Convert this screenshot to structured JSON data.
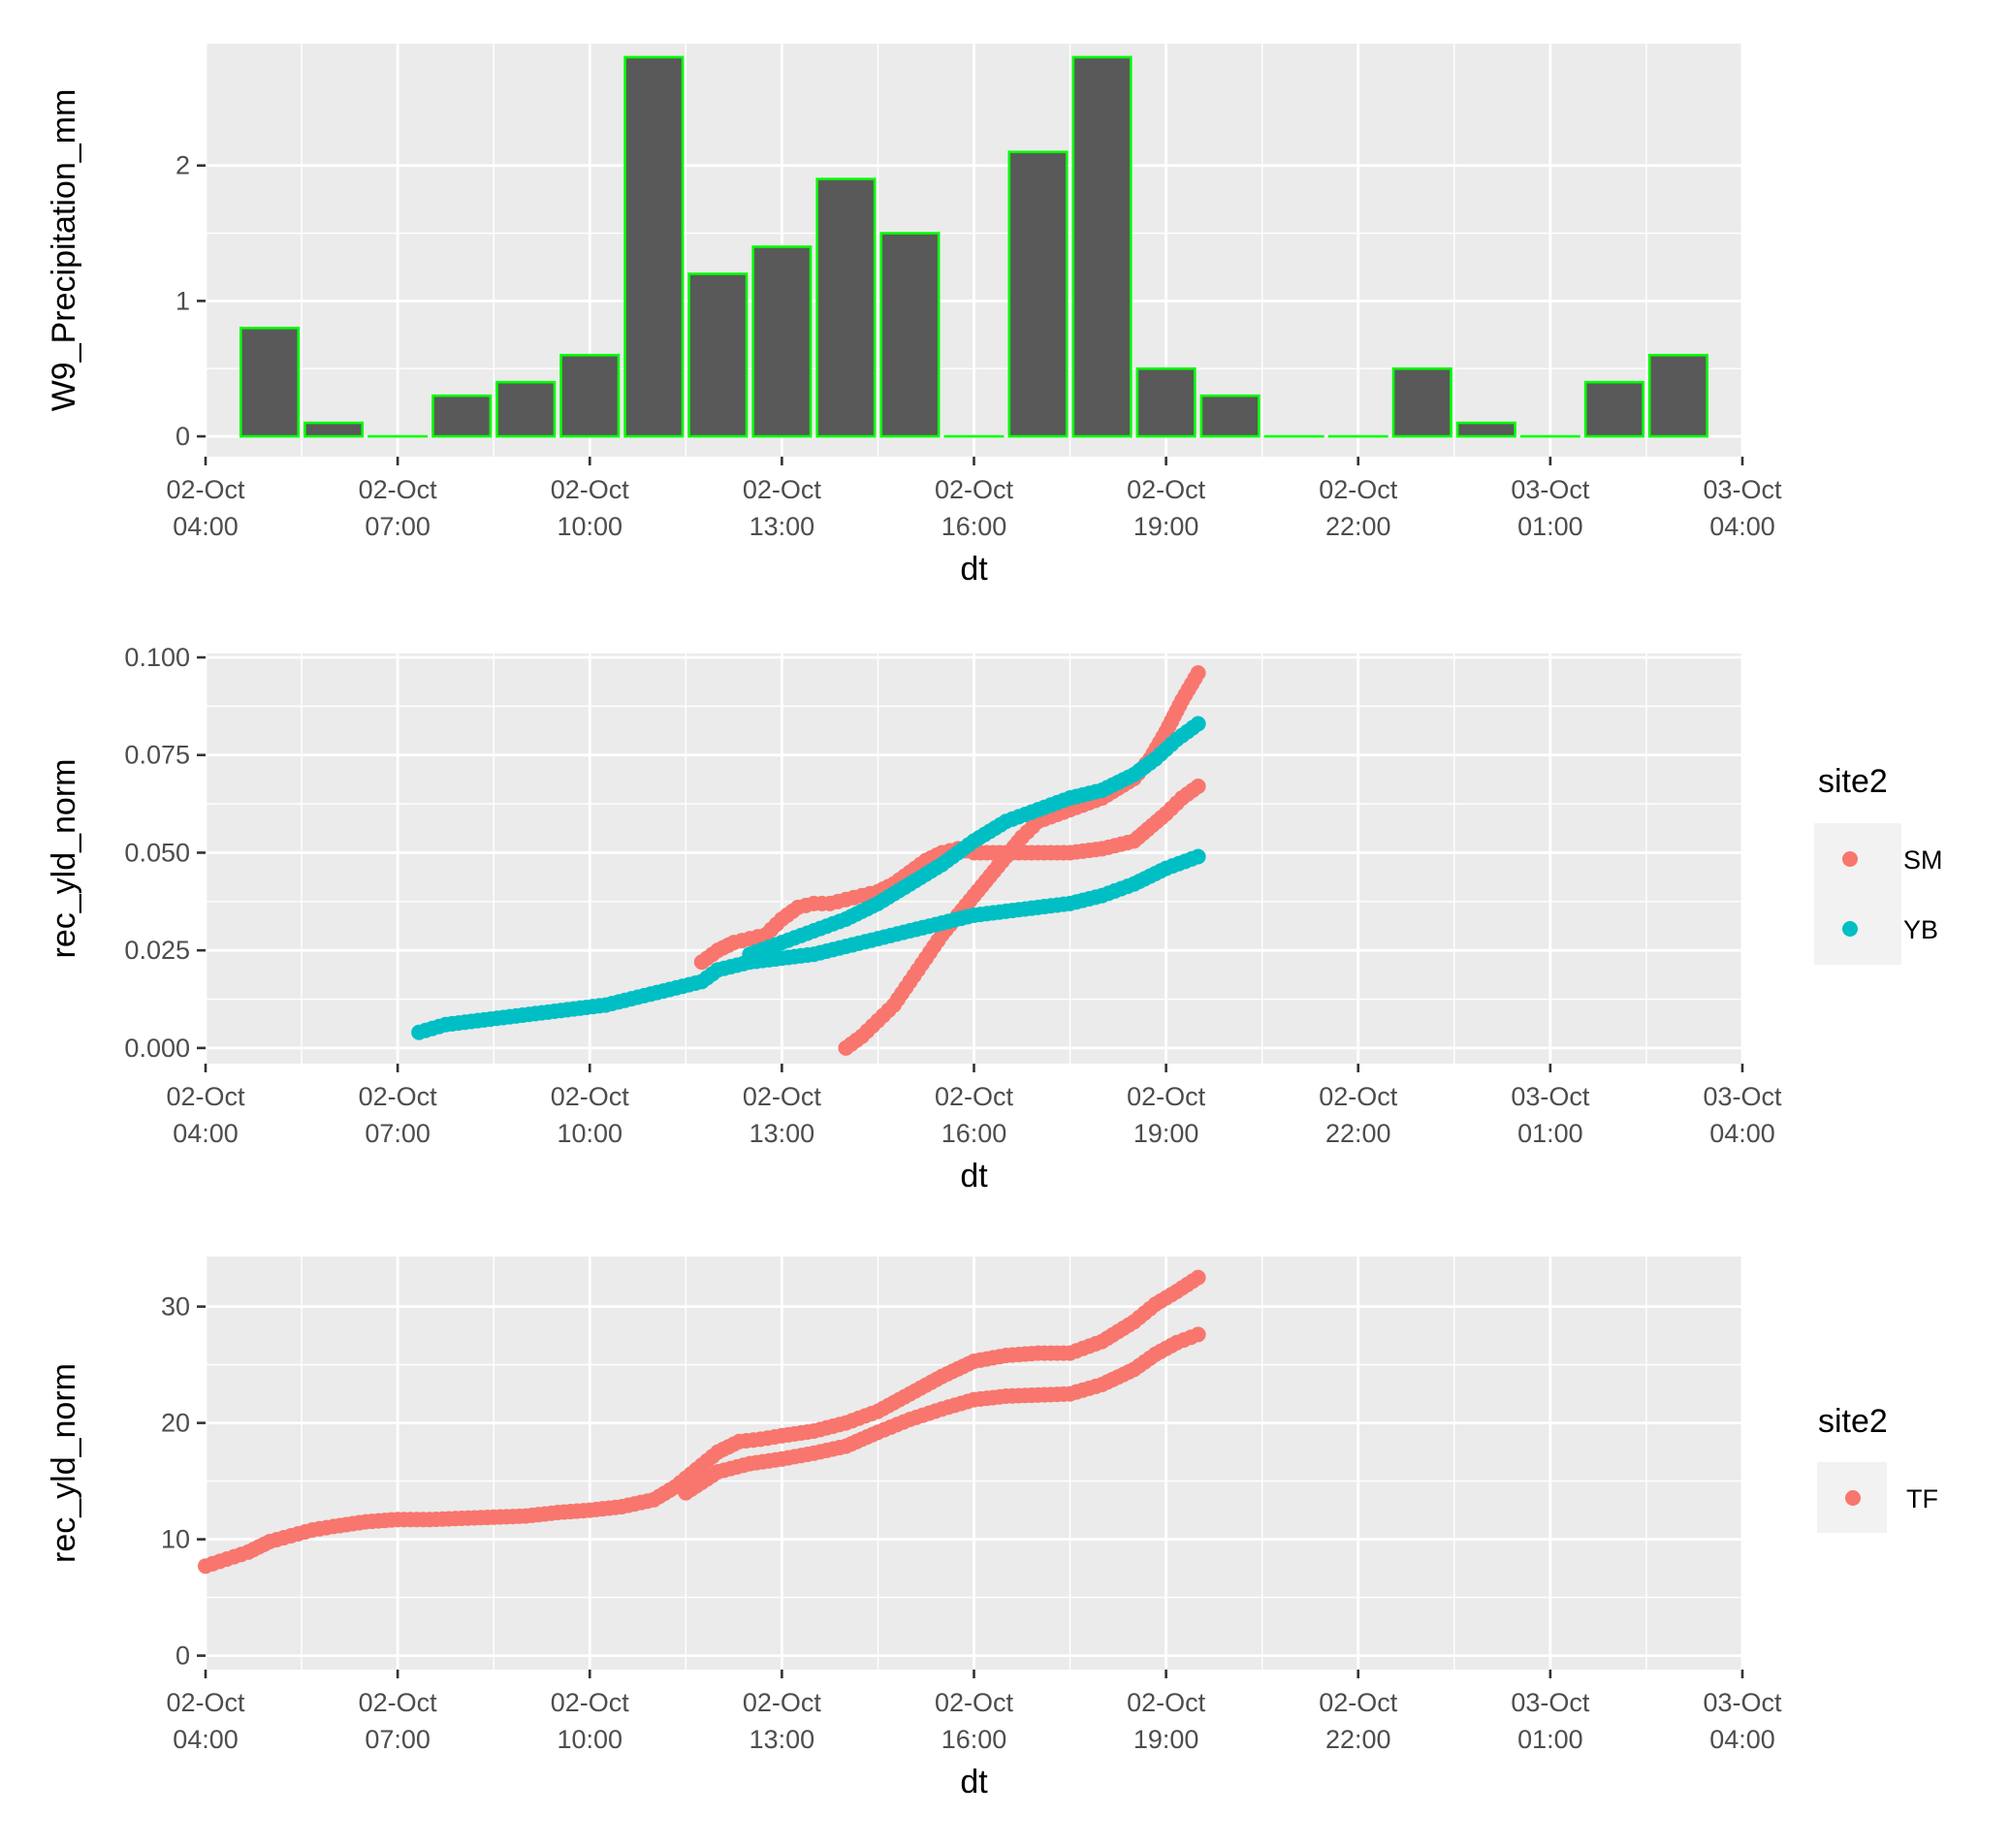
{
  "chart_data": [
    {
      "type": "bar",
      "title": "",
      "xlabel": "dt",
      "ylabel": "W9_Precipitation_mm",
      "xlim": [
        "2023-10-02T04:00",
        "2023-10-03T04:00"
      ],
      "ylim": [
        -0.15,
        2.9
      ],
      "yticks": [
        0,
        1,
        2
      ],
      "ytick_labels": [
        "0",
        "1",
        "2"
      ],
      "xticks": [
        "2023-10-02T04:00",
        "2023-10-02T07:00",
        "2023-10-02T10:00",
        "2023-10-02T13:00",
        "2023-10-02T16:00",
        "2023-10-02T19:00",
        "2023-10-02T22:00",
        "2023-10-03T01:00",
        "2023-10-03T04:00"
      ],
      "xtick_labels": [
        [
          "02-Oct",
          "04:00"
        ],
        [
          "02-Oct",
          "07:00"
        ],
        [
          "02-Oct",
          "10:00"
        ],
        [
          "02-Oct",
          "13:00"
        ],
        [
          "02-Oct",
          "16:00"
        ],
        [
          "02-Oct",
          "19:00"
        ],
        [
          "02-Oct",
          "22:00"
        ],
        [
          "03-Oct",
          "01:00"
        ],
        [
          "03-Oct",
          "04:00"
        ]
      ],
      "grid": true,
      "fill_color": "#595959",
      "edge_color": "#00ff00",
      "bars": [
        {
          "x": "2023-10-02T05:00",
          "value": 0.8
        },
        {
          "x": "2023-10-02T06:00",
          "value": 0.1
        },
        {
          "x": "2023-10-02T07:00",
          "value": 0.0
        },
        {
          "x": "2023-10-02T08:00",
          "value": 0.3
        },
        {
          "x": "2023-10-02T09:00",
          "value": 0.4
        },
        {
          "x": "2023-10-02T10:00",
          "value": 0.6
        },
        {
          "x": "2023-10-02T11:00",
          "value": 2.8
        },
        {
          "x": "2023-10-02T12:00",
          "value": 1.2
        },
        {
          "x": "2023-10-02T13:00",
          "value": 1.4
        },
        {
          "x": "2023-10-02T14:00",
          "value": 1.9
        },
        {
          "x": "2023-10-02T15:00",
          "value": 1.5
        },
        {
          "x": "2023-10-02T16:00",
          "value": 0.0
        },
        {
          "x": "2023-10-02T17:00",
          "value": 2.1
        },
        {
          "x": "2023-10-02T18:00",
          "value": 2.8
        },
        {
          "x": "2023-10-02T19:00",
          "value": 0.5
        },
        {
          "x": "2023-10-02T20:00",
          "value": 0.3
        },
        {
          "x": "2023-10-02T21:00",
          "value": 0.0
        },
        {
          "x": "2023-10-02T22:00",
          "value": 0.0
        },
        {
          "x": "2023-10-02T23:00",
          "value": 0.5
        },
        {
          "x": "2023-10-03T00:00",
          "value": 0.1
        },
        {
          "x": "2023-10-03T01:00",
          "value": 0.0
        },
        {
          "x": "2023-10-03T02:00",
          "value": 0.4
        },
        {
          "x": "2023-10-03T03:00",
          "value": 0.6
        }
      ]
    },
    {
      "type": "scatter",
      "title": "",
      "xlabel": "dt",
      "ylabel": "rec_yld_norm",
      "xlim": [
        "2023-10-02T04:00",
        "2023-10-03T04:00"
      ],
      "ylim": [
        -0.004,
        0.101
      ],
      "yticks": [
        0,
        0.025,
        0.05,
        0.075,
        0.1
      ],
      "ytick_labels": [
        "0.000",
        "0.025",
        "0.050",
        "0.075",
        "0.100"
      ],
      "xticks": [
        "2023-10-02T04:00",
        "2023-10-02T07:00",
        "2023-10-02T10:00",
        "2023-10-02T13:00",
        "2023-10-02T16:00",
        "2023-10-02T19:00",
        "2023-10-02T22:00",
        "2023-10-03T01:00",
        "2023-10-03T04:00"
      ],
      "xtick_labels": [
        [
          "02-Oct",
          "04:00"
        ],
        [
          "02-Oct",
          "07:00"
        ],
        [
          "02-Oct",
          "10:00"
        ],
        [
          "02-Oct",
          "13:00"
        ],
        [
          "02-Oct",
          "16:00"
        ],
        [
          "02-Oct",
          "19:00"
        ],
        [
          "02-Oct",
          "22:00"
        ],
        [
          "03-Oct",
          "01:00"
        ],
        [
          "03-Oct",
          "04:00"
        ]
      ],
      "grid": true,
      "legend": {
        "title": "site2",
        "position": "right"
      },
      "series": [
        {
          "name": "SM",
          "color": "#f8766d",
          "points": [
            {
              "x": "2023-10-02T11:45",
              "y": 0.022
            },
            {
              "x": "2023-10-02T12:00",
              "y": 0.025
            },
            {
              "x": "2023-10-02T12:15",
              "y": 0.027
            },
            {
              "x": "2023-10-02T12:30",
              "y": 0.028
            },
            {
              "x": "2023-10-02T12:45",
              "y": 0.029
            },
            {
              "x": "2023-10-02T13:00",
              "y": 0.033
            },
            {
              "x": "2023-10-02T13:15",
              "y": 0.036
            },
            {
              "x": "2023-10-02T13:30",
              "y": 0.037
            },
            {
              "x": "2023-10-02T13:45",
              "y": 0.037
            },
            {
              "x": "2023-10-02T14:00",
              "y": 0.038
            },
            {
              "x": "2023-10-02T14:15",
              "y": 0.039
            },
            {
              "x": "2023-10-02T14:30",
              "y": 0.04
            },
            {
              "x": "2023-10-02T14:45",
              "y": 0.042
            },
            {
              "x": "2023-10-02T15:00",
              "y": 0.045
            },
            {
              "x": "2023-10-02T15:15",
              "y": 0.048
            },
            {
              "x": "2023-10-02T15:30",
              "y": 0.05
            },
            {
              "x": "2023-10-02T15:45",
              "y": 0.051
            },
            {
              "x": "2023-10-02T16:00",
              "y": 0.05
            },
            {
              "x": "2023-10-02T16:30",
              "y": 0.05
            },
            {
              "x": "2023-10-02T17:00",
              "y": 0.05
            },
            {
              "x": "2023-10-02T17:30",
              "y": 0.05
            },
            {
              "x": "2023-10-02T18:00",
              "y": 0.051
            },
            {
              "x": "2023-10-02T18:30",
              "y": 0.053
            },
            {
              "x": "2023-10-02T19:00",
              "y": 0.06
            },
            {
              "x": "2023-10-02T19:15",
              "y": 0.064
            },
            {
              "x": "2023-10-02T19:30",
              "y": 0.067
            },
            {
              "x": "2023-10-02T14:00",
              "y": 0.0
            },
            {
              "x": "2023-10-02T14:15",
              "y": 0.003
            },
            {
              "x": "2023-10-02T14:30",
              "y": 0.007
            },
            {
              "x": "2023-10-02T14:45",
              "y": 0.011
            },
            {
              "x": "2023-10-02T15:00",
              "y": 0.017
            },
            {
              "x": "2023-10-02T15:15",
              "y": 0.023
            },
            {
              "x": "2023-10-02T15:30",
              "y": 0.029
            },
            {
              "x": "2023-10-02T15:45",
              "y": 0.034
            },
            {
              "x": "2023-10-02T16:00",
              "y": 0.039
            },
            {
              "x": "2023-10-02T16:15",
              "y": 0.044
            },
            {
              "x": "2023-10-02T16:30",
              "y": 0.049
            },
            {
              "x": "2023-10-02T16:45",
              "y": 0.054
            },
            {
              "x": "2023-10-02T17:00",
              "y": 0.058
            },
            {
              "x": "2023-10-02T17:30",
              "y": 0.061
            },
            {
              "x": "2023-10-02T18:00",
              "y": 0.064
            },
            {
              "x": "2023-10-02T18:30",
              "y": 0.069
            },
            {
              "x": "2023-10-02T18:45",
              "y": 0.074
            },
            {
              "x": "2023-10-02T19:00",
              "y": 0.081
            },
            {
              "x": "2023-10-02T19:15",
              "y": 0.089
            },
            {
              "x": "2023-10-02T19:30",
              "y": 0.096
            }
          ]
        },
        {
          "name": "YB",
          "color": "#00bfc4",
          "points": [
            {
              "x": "2023-10-02T07:20",
              "y": 0.004
            },
            {
              "x": "2023-10-02T07:45",
              "y": 0.006
            },
            {
              "x": "2023-10-02T08:15",
              "y": 0.007
            },
            {
              "x": "2023-10-02T08:45",
              "y": 0.008
            },
            {
              "x": "2023-10-02T09:15",
              "y": 0.009
            },
            {
              "x": "2023-10-02T09:45",
              "y": 0.01
            },
            {
              "x": "2023-10-02T10:15",
              "y": 0.011
            },
            {
              "x": "2023-10-02T10:45",
              "y": 0.013
            },
            {
              "x": "2023-10-02T11:15",
              "y": 0.015
            },
            {
              "x": "2023-10-02T11:45",
              "y": 0.017
            },
            {
              "x": "2023-10-02T12:00",
              "y": 0.02
            },
            {
              "x": "2023-10-02T12:30",
              "y": 0.022
            },
            {
              "x": "2023-10-02T13:00",
              "y": 0.023
            },
            {
              "x": "2023-10-02T13:30",
              "y": 0.024
            },
            {
              "x": "2023-10-02T14:00",
              "y": 0.026
            },
            {
              "x": "2023-10-02T14:30",
              "y": 0.028
            },
            {
              "x": "2023-10-02T15:00",
              "y": 0.03
            },
            {
              "x": "2023-10-02T15:30",
              "y": 0.032
            },
            {
              "x": "2023-10-02T16:00",
              "y": 0.034
            },
            {
              "x": "2023-10-02T16:30",
              "y": 0.035
            },
            {
              "x": "2023-10-02T17:00",
              "y": 0.036
            },
            {
              "x": "2023-10-02T17:30",
              "y": 0.037
            },
            {
              "x": "2023-10-02T18:00",
              "y": 0.039
            },
            {
              "x": "2023-10-02T18:30",
              "y": 0.042
            },
            {
              "x": "2023-10-02T19:00",
              "y": 0.046
            },
            {
              "x": "2023-10-02T19:30",
              "y": 0.049
            },
            {
              "x": "2023-10-02T12:30",
              "y": 0.024
            },
            {
              "x": "2023-10-02T13:00",
              "y": 0.027
            },
            {
              "x": "2023-10-02T13:30",
              "y": 0.03
            },
            {
              "x": "2023-10-02T14:00",
              "y": 0.033
            },
            {
              "x": "2023-10-02T14:30",
              "y": 0.037
            },
            {
              "x": "2023-10-02T15:00",
              "y": 0.042
            },
            {
              "x": "2023-10-02T15:30",
              "y": 0.047
            },
            {
              "x": "2023-10-02T16:00",
              "y": 0.053
            },
            {
              "x": "2023-10-02T16:30",
              "y": 0.058
            },
            {
              "x": "2023-10-02T17:00",
              "y": 0.061
            },
            {
              "x": "2023-10-02T17:30",
              "y": 0.064
            },
            {
              "x": "2023-10-02T18:00",
              "y": 0.066
            },
            {
              "x": "2023-10-02T18:30",
              "y": 0.07
            },
            {
              "x": "2023-10-02T18:50",
              "y": 0.074
            },
            {
              "x": "2023-10-02T19:10",
              "y": 0.079
            },
            {
              "x": "2023-10-02T19:30",
              "y": 0.083
            }
          ]
        }
      ]
    },
    {
      "type": "scatter",
      "title": "",
      "xlabel": "dt",
      "ylabel": "rec_yld_norm",
      "xlim": [
        "2023-10-02T04:00",
        "2023-10-03T04:00"
      ],
      "ylim": [
        -1.2,
        34.3
      ],
      "yticks": [
        0,
        10,
        20,
        30
      ],
      "ytick_labels": [
        "0",
        "10",
        "20",
        "30"
      ],
      "xticks": [
        "2023-10-02T04:00",
        "2023-10-02T07:00",
        "2023-10-02T10:00",
        "2023-10-02T13:00",
        "2023-10-02T16:00",
        "2023-10-02T19:00",
        "2023-10-02T22:00",
        "2023-10-03T01:00",
        "2023-10-03T04:00"
      ],
      "xtick_labels": [
        [
          "02-Oct",
          "04:00"
        ],
        [
          "02-Oct",
          "07:00"
        ],
        [
          "02-Oct",
          "10:00"
        ],
        [
          "02-Oct",
          "13:00"
        ],
        [
          "02-Oct",
          "16:00"
        ],
        [
          "02-Oct",
          "19:00"
        ],
        [
          "02-Oct",
          "22:00"
        ],
        [
          "03-Oct",
          "01:00"
        ],
        [
          "03-Oct",
          "04:00"
        ]
      ],
      "grid": true,
      "legend": {
        "title": "site2",
        "position": "right"
      },
      "series": [
        {
          "name": "TF",
          "color": "#f8766d",
          "points": [
            {
              "x": "2023-10-02T04:00",
              "y": 7.7
            },
            {
              "x": "2023-10-02T04:20",
              "y": 8.3
            },
            {
              "x": "2023-10-02T04:40",
              "y": 8.9
            },
            {
              "x": "2023-10-02T05:00",
              "y": 9.8
            },
            {
              "x": "2023-10-02T05:20",
              "y": 10.3
            },
            {
              "x": "2023-10-02T05:40",
              "y": 10.8
            },
            {
              "x": "2023-10-02T06:00",
              "y": 11.1
            },
            {
              "x": "2023-10-02T06:30",
              "y": 11.5
            },
            {
              "x": "2023-10-02T07:00",
              "y": 11.7
            },
            {
              "x": "2023-10-02T07:30",
              "y": 11.7
            },
            {
              "x": "2023-10-02T08:00",
              "y": 11.8
            },
            {
              "x": "2023-10-02T08:30",
              "y": 11.9
            },
            {
              "x": "2023-10-02T09:00",
              "y": 12.0
            },
            {
              "x": "2023-10-02T09:30",
              "y": 12.3
            },
            {
              "x": "2023-10-02T10:00",
              "y": 12.5
            },
            {
              "x": "2023-10-02T10:30",
              "y": 12.8
            },
            {
              "x": "2023-10-02T11:00",
              "y": 13.4
            },
            {
              "x": "2023-10-02T11:20",
              "y": 14.5
            },
            {
              "x": "2023-10-02T11:40",
              "y": 16.0
            },
            {
              "x": "2023-10-02T12:00",
              "y": 17.5
            },
            {
              "x": "2023-10-02T12:20",
              "y": 18.4
            },
            {
              "x": "2023-10-02T12:40",
              "y": 18.6
            },
            {
              "x": "2023-10-02T13:00",
              "y": 18.9
            },
            {
              "x": "2023-10-02T13:30",
              "y": 19.3
            },
            {
              "x": "2023-10-02T14:00",
              "y": 20.0
            },
            {
              "x": "2023-10-02T14:30",
              "y": 21.0
            },
            {
              "x": "2023-10-02T15:00",
              "y": 22.5
            },
            {
              "x": "2023-10-02T15:30",
              "y": 24.0
            },
            {
              "x": "2023-10-02T16:00",
              "y": 25.3
            },
            {
              "x": "2023-10-02T16:30",
              "y": 25.8
            },
            {
              "x": "2023-10-02T17:00",
              "y": 26.0
            },
            {
              "x": "2023-10-02T17:30",
              "y": 26.0
            },
            {
              "x": "2023-10-02T18:00",
              "y": 27.0
            },
            {
              "x": "2023-10-02T18:30",
              "y": 28.7
            },
            {
              "x": "2023-10-02T18:50",
              "y": 30.2
            },
            {
              "x": "2023-10-02T19:10",
              "y": 31.3
            },
            {
              "x": "2023-10-02T19:30",
              "y": 32.5
            },
            {
              "x": "2023-10-02T11:30",
              "y": 14.0
            },
            {
              "x": "2023-10-02T12:00",
              "y": 15.8
            },
            {
              "x": "2023-10-02T12:30",
              "y": 16.5
            },
            {
              "x": "2023-10-02T13:00",
              "y": 16.9
            },
            {
              "x": "2023-10-02T13:30",
              "y": 17.4
            },
            {
              "x": "2023-10-02T14:00",
              "y": 18.0
            },
            {
              "x": "2023-10-02T14:30",
              "y": 19.2
            },
            {
              "x": "2023-10-02T15:00",
              "y": 20.3
            },
            {
              "x": "2023-10-02T15:30",
              "y": 21.2
            },
            {
              "x": "2023-10-02T16:00",
              "y": 22.0
            },
            {
              "x": "2023-10-02T16:30",
              "y": 22.3
            },
            {
              "x": "2023-10-02T17:00",
              "y": 22.4
            },
            {
              "x": "2023-10-02T17:30",
              "y": 22.5
            },
            {
              "x": "2023-10-02T18:00",
              "y": 23.3
            },
            {
              "x": "2023-10-02T18:30",
              "y": 24.6
            },
            {
              "x": "2023-10-02T18:50",
              "y": 25.9
            },
            {
              "x": "2023-10-02T19:10",
              "y": 26.9
            },
            {
              "x": "2023-10-02T19:30",
              "y": 27.6
            }
          ]
        }
      ]
    }
  ]
}
